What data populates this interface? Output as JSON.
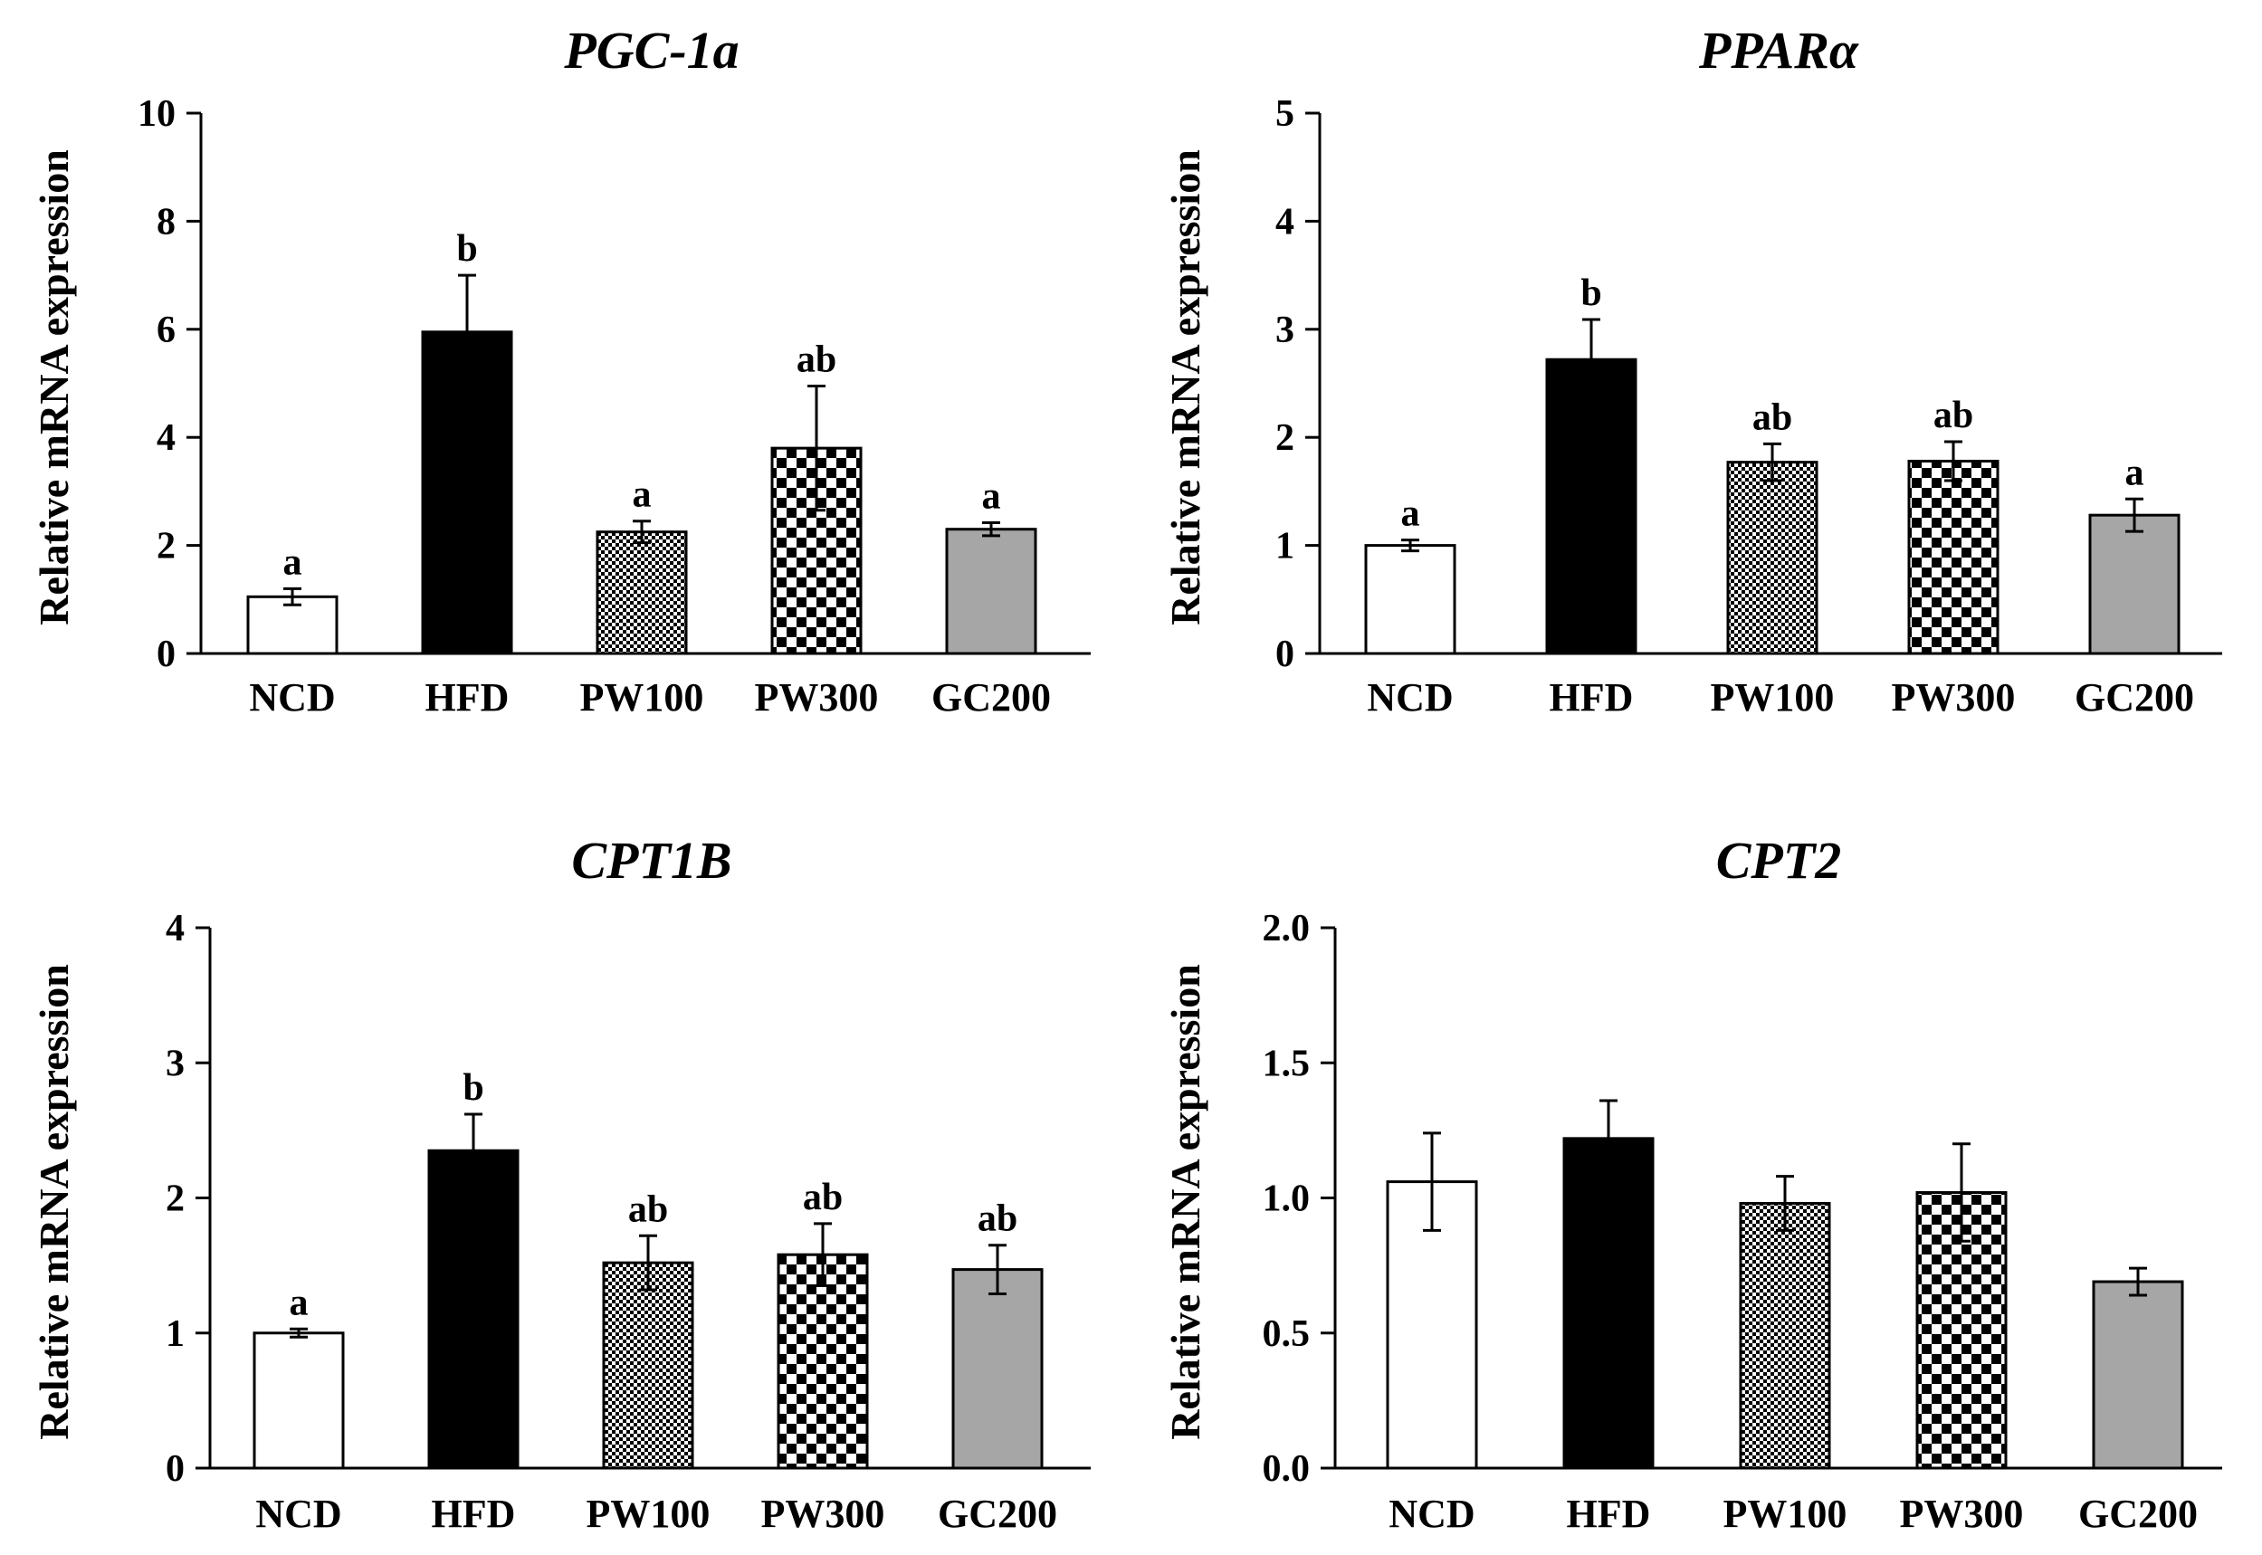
{
  "patterns": {
    "NCD": "white",
    "HFD": "black",
    "PW100": "fine-checker",
    "PW300": "coarse-checker",
    "GC200": "gray"
  },
  "colors": {
    "bar_stroke": "#000000",
    "gray_fill": "#a6a6a6",
    "axis": "#000000"
  },
  "chart_data": [
    {
      "type": "bar",
      "title": "PGC-1a",
      "ylabel": "Relative mRNA expression",
      "categories": [
        "NCD",
        "HFD",
        "PW100",
        "PW300",
        "GC200"
      ],
      "values": [
        1.05,
        5.95,
        2.25,
        3.8,
        2.3
      ],
      "errors": [
        0.15,
        1.05,
        0.2,
        1.15,
        0.12
      ],
      "significance": [
        "a",
        "b",
        "a",
        "ab",
        "a"
      ],
      "ylim": [
        0,
        10
      ],
      "yticks": [
        "0",
        "2",
        "4",
        "6",
        "8",
        "10"
      ]
    },
    {
      "type": "bar",
      "title": "PPARα",
      "ylabel": "Relative mRNA expression",
      "categories": [
        "NCD",
        "HFD",
        "PW100",
        "PW300",
        "GC200"
      ],
      "values": [
        1.0,
        2.72,
        1.77,
        1.78,
        1.28
      ],
      "errors": [
        0.05,
        0.37,
        0.17,
        0.18,
        0.15
      ],
      "significance": [
        "a",
        "b",
        "ab",
        "ab",
        "a"
      ],
      "ylim": [
        0,
        5
      ],
      "yticks": [
        "0",
        "1",
        "2",
        "3",
        "4",
        "5"
      ]
    },
    {
      "type": "bar",
      "title": "CPT1B",
      "ylabel": "Relative mRNA expression",
      "categories": [
        "NCD",
        "HFD",
        "PW100",
        "PW300",
        "GC200"
      ],
      "values": [
        1.0,
        2.35,
        1.52,
        1.58,
        1.47
      ],
      "errors": [
        0.03,
        0.27,
        0.2,
        0.23,
        0.18
      ],
      "significance": [
        "a",
        "b",
        "ab",
        "ab",
        "ab"
      ],
      "ylim": [
        0,
        4
      ],
      "yticks": [
        "0",
        "1",
        "2",
        "3",
        "4"
      ]
    },
    {
      "type": "bar",
      "title": "CPT2",
      "ylabel": "Relative mRNA expression",
      "categories": [
        "NCD",
        "HFD",
        "PW100",
        "PW300",
        "GC200"
      ],
      "values": [
        1.06,
        1.22,
        0.98,
        1.02,
        0.69
      ],
      "errors": [
        0.18,
        0.14,
        0.1,
        0.18,
        0.05
      ],
      "significance": [
        "",
        "",
        "",
        "",
        ""
      ],
      "ylim": [
        0,
        2.0
      ],
      "yticks": [
        "0.0",
        "0.5",
        "1.0",
        "1.5",
        "2.0"
      ]
    }
  ]
}
